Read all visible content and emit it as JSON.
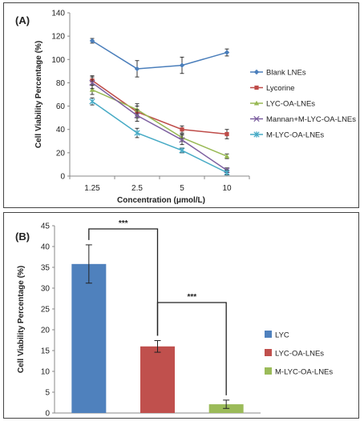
{
  "chart_data": [
    {
      "type": "line",
      "panel_label": "(A)",
      "ylabel": "Cell Viability Percentage (%)",
      "xlabel": "Concentration (μmol/L)",
      "categories": [
        "1.25",
        "2.5",
        "5",
        "10"
      ],
      "ylim": [
        0,
        140
      ],
      "yticks": [
        0,
        20,
        40,
        60,
        80,
        100,
        120,
        140
      ],
      "grid": false,
      "legend_position": "right",
      "series": [
        {
          "name": "Blank LNEs",
          "color": "#4a7ebb",
          "marker": "diamond",
          "values": [
            116,
            92,
            95,
            106
          ],
          "errors": [
            2,
            7,
            7,
            3
          ]
        },
        {
          "name": "Lycorine",
          "color": "#be4b48",
          "marker": "square",
          "values": [
            82,
            55,
            40,
            36
          ],
          "errors": [
            4,
            5,
            3,
            4
          ]
        },
        {
          "name": "LYC-OA-LNEs",
          "color": "#98b954",
          "marker": "triangle",
          "values": [
            74,
            57,
            33,
            17
          ],
          "errors": [
            4,
            5,
            3,
            2
          ]
        },
        {
          "name": "Mannan+M-LYC-OA-LNEs",
          "color": "#7d60a0",
          "marker": "x",
          "values": [
            80,
            52,
            31,
            5
          ],
          "errors": [
            5,
            5,
            4,
            2
          ]
        },
        {
          "name": "M-LYC-OA-LNEs",
          "color": "#46aac5",
          "marker": "star",
          "values": [
            64,
            37,
            22,
            3
          ],
          "errors": [
            3,
            4,
            2,
            2
          ]
        }
      ]
    },
    {
      "type": "bar",
      "panel_label": "(B)",
      "ylabel": "Cell Viability Percentage (%)",
      "xlabel": "",
      "categories": [
        "LYC",
        "LYC-OA-LNEs",
        "M-LYC-OA-LNEs"
      ],
      "values": [
        35.8,
        16.0,
        2.1
      ],
      "errors": [
        4.6,
        1.4,
        1.0
      ],
      "colors": [
        "#4f81bd",
        "#c0504d",
        "#9bbb59"
      ],
      "ylim": [
        0,
        45
      ],
      "yticks": [
        0,
        5,
        10,
        15,
        20,
        25,
        30,
        35,
        40,
        45
      ],
      "grid": false,
      "legend_position": "right",
      "significance": [
        {
          "label": "***",
          "from": "LYC",
          "to": "LYC-OA-LNEs"
        },
        {
          "label": "***",
          "from": "LYC-OA-LNEs",
          "to": "M-LYC-OA-LNEs"
        }
      ]
    }
  ]
}
